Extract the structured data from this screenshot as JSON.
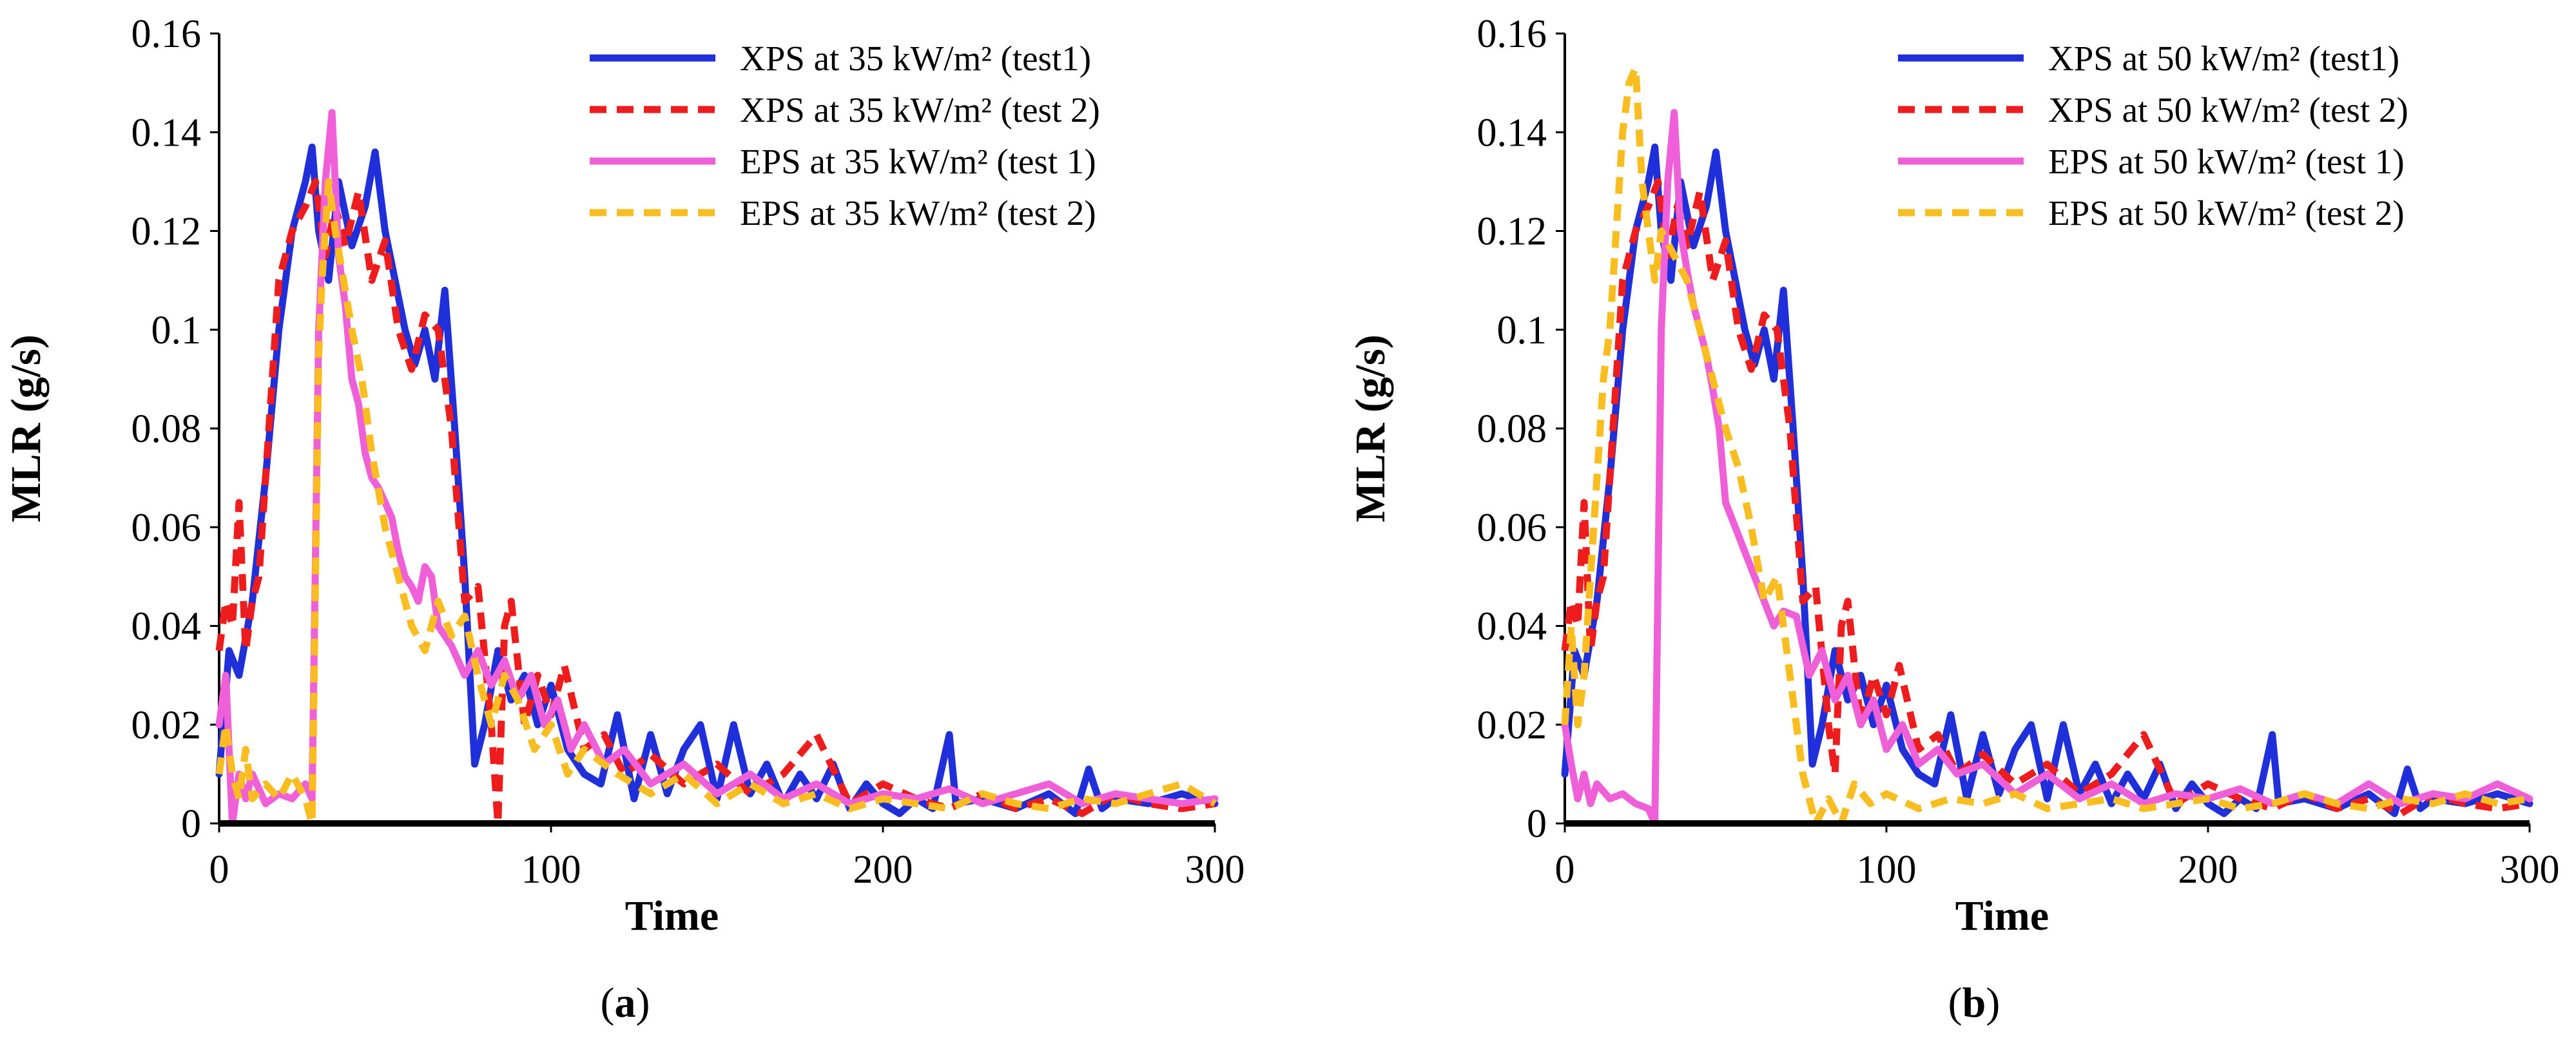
{
  "chart_data": [
    {
      "type": "line",
      "caption_open": "(",
      "caption_letter": "a",
      "caption_close": ")",
      "xlabel": "Time",
      "ylabel": "MLR (g/s)",
      "xlim": [
        0,
        300
      ],
      "ylim": [
        0,
        0.16
      ],
      "x_ticks": [
        "0",
        "100",
        "200",
        "300"
      ],
      "y_ticks": [
        "0",
        "0.02",
        "0.04",
        "0.06",
        "0.08",
        "0.1",
        "0.12",
        "0.14",
        "0.16"
      ],
      "legend_position": "top-right",
      "grid": false,
      "series": [
        {
          "name": "XPS at 35 kW/m² (test1)",
          "color": "#1f2fd9",
          "dash": "solid",
          "x": [
            0,
            3,
            6,
            10,
            14,
            18,
            22,
            26,
            28,
            30,
            33,
            36,
            40,
            44,
            47,
            50,
            53,
            56,
            59,
            62,
            65,
            68,
            71,
            74,
            77,
            80,
            84,
            88,
            92,
            96,
            100,
            105,
            110,
            115,
            120,
            125,
            130,
            135,
            140,
            145,
            150,
            155,
            160,
            165,
            170,
            175,
            180,
            185,
            190,
            195,
            200,
            205,
            210,
            215,
            218,
            220,
            222,
            230,
            240,
            250,
            258,
            262,
            266,
            270,
            280,
            290,
            300
          ],
          "y": [
            0.01,
            0.035,
            0.03,
            0.045,
            0.07,
            0.1,
            0.12,
            0.13,
            0.137,
            0.12,
            0.11,
            0.13,
            0.117,
            0.125,
            0.136,
            0.12,
            0.11,
            0.1,
            0.093,
            0.1,
            0.09,
            0.108,
            0.08,
            0.05,
            0.012,
            0.02,
            0.035,
            0.025,
            0.03,
            0.02,
            0.028,
            0.015,
            0.01,
            0.008,
            0.022,
            0.005,
            0.018,
            0.006,
            0.015,
            0.02,
            0.005,
            0.02,
            0.006,
            0.012,
            0.004,
            0.01,
            0.005,
            0.012,
            0.003,
            0.008,
            0.004,
            0.002,
            0.005,
            0.003,
            0.012,
            0.018,
            0.004,
            0.005,
            0.003,
            0.006,
            0.002,
            0.011,
            0.003,
            0.005,
            0.004,
            0.006,
            0.004
          ]
        },
        {
          "name": "XPS at 35 kW/m² (test 2)",
          "color": "#ee1c1c",
          "dash": "dashed",
          "x": [
            0,
            2,
            4,
            6,
            8,
            10,
            12,
            14,
            18,
            22,
            26,
            29,
            32,
            35,
            38,
            42,
            46,
            50,
            54,
            58,
            62,
            66,
            70,
            74,
            78,
            82,
            84,
            86,
            88,
            92,
            96,
            100,
            104,
            110,
            116,
            122,
            130,
            140,
            150,
            160,
            170,
            180,
            190,
            200,
            210,
            220,
            230,
            240,
            250,
            260,
            270,
            280,
            290,
            300
          ],
          "y": [
            0.035,
            0.045,
            0.04,
            0.065,
            0.035,
            0.045,
            0.05,
            0.07,
            0.11,
            0.12,
            0.125,
            0.13,
            0.115,
            0.125,
            0.117,
            0.128,
            0.11,
            0.118,
            0.1,
            0.092,
            0.103,
            0.1,
            0.08,
            0.045,
            0.048,
            0.02,
            0.0,
            0.04,
            0.045,
            0.02,
            0.03,
            0.022,
            0.032,
            0.015,
            0.018,
            0.01,
            0.014,
            0.008,
            0.012,
            0.006,
            0.01,
            0.018,
            0.004,
            0.008,
            0.005,
            0.003,
            0.006,
            0.003,
            0.005,
            0.002,
            0.006,
            0.004,
            0.003,
            0.004
          ]
        },
        {
          "name": "EPS at 35 kW/m² (test 1)",
          "color": "#ee5fd8",
          "dash": "solid",
          "x": [
            0,
            2,
            4,
            6,
            8,
            10,
            14,
            18,
            22,
            26,
            28,
            30,
            32,
            34,
            36,
            38,
            40,
            42,
            44,
            46,
            48,
            50,
            52,
            54,
            56,
            58,
            60,
            62,
            64,
            66,
            70,
            74,
            78,
            82,
            86,
            90,
            94,
            98,
            102,
            106,
            110,
            116,
            122,
            130,
            140,
            150,
            160,
            170,
            180,
            190,
            200,
            210,
            220,
            230,
            240,
            250,
            260,
            270,
            280,
            290,
            300
          ],
          "y": [
            0.02,
            0.03,
            0.0,
            0.01,
            0.005,
            0.01,
            0.004,
            0.006,
            0.005,
            0.008,
            0.005,
            0.1,
            0.13,
            0.144,
            0.115,
            0.105,
            0.09,
            0.085,
            0.075,
            0.07,
            0.068,
            0.065,
            0.062,
            0.055,
            0.05,
            0.048,
            0.045,
            0.052,
            0.05,
            0.04,
            0.036,
            0.03,
            0.035,
            0.028,
            0.033,
            0.025,
            0.03,
            0.02,
            0.025,
            0.015,
            0.02,
            0.012,
            0.015,
            0.008,
            0.012,
            0.006,
            0.01,
            0.005,
            0.008,
            0.004,
            0.006,
            0.005,
            0.007,
            0.004,
            0.006,
            0.008,
            0.004,
            0.006,
            0.005,
            0.004,
            0.005
          ]
        },
        {
          "name": "EPS at 35 kW/m² (test 2)",
          "color": "#f9bd1f",
          "dash": "dashed",
          "x": [
            0,
            2,
            4,
            6,
            8,
            10,
            14,
            18,
            22,
            26,
            28,
            30,
            31,
            33,
            35,
            37,
            40,
            43,
            46,
            50,
            54,
            58,
            62,
            66,
            70,
            74,
            78,
            82,
            86,
            90,
            95,
            100,
            105,
            110,
            120,
            130,
            140,
            150,
            160,
            170,
            180,
            190,
            200,
            210,
            220,
            230,
            240,
            250,
            260,
            270,
            280,
            290,
            300
          ],
          "y": [
            0.01,
            0.02,
            0.01,
            0.005,
            0.015,
            0.005,
            0.008,
            0.005,
            0.01,
            0.005,
            0.0,
            0.095,
            0.11,
            0.13,
            0.12,
            0.112,
            0.1,
            0.09,
            0.075,
            0.06,
            0.05,
            0.04,
            0.035,
            0.045,
            0.038,
            0.042,
            0.03,
            0.02,
            0.03,
            0.025,
            0.015,
            0.02,
            0.01,
            0.015,
            0.01,
            0.006,
            0.01,
            0.004,
            0.008,
            0.004,
            0.006,
            0.003,
            0.005,
            0.004,
            0.003,
            0.006,
            0.004,
            0.003,
            0.005,
            0.004,
            0.006,
            0.008,
            0.004
          ]
        }
      ]
    },
    {
      "type": "line",
      "caption_open": "(",
      "caption_letter": "b",
      "caption_close": ")",
      "xlabel": "Time",
      "ylabel": "MLR (g/s)",
      "xlim": [
        0,
        300
      ],
      "ylim": [
        0,
        0.16
      ],
      "x_ticks": [
        "0",
        "100",
        "200",
        "300"
      ],
      "y_ticks": [
        "0",
        "0.02",
        "0.04",
        "0.06",
        "0.08",
        "0.1",
        "0.12",
        "0.14",
        "0.16"
      ],
      "legend_position": "top-right",
      "grid": false,
      "series": [
        {
          "name": "XPS at 50 kW/m² (test1)",
          "color": "#1f2fd9",
          "dash": "solid",
          "x": [
            0,
            3,
            6,
            10,
            14,
            18,
            22,
            26,
            28,
            30,
            33,
            36,
            40,
            44,
            47,
            50,
            53,
            56,
            59,
            62,
            65,
            68,
            71,
            74,
            77,
            80,
            84,
            88,
            92,
            96,
            100,
            105,
            110,
            115,
            120,
            125,
            130,
            135,
            140,
            145,
            150,
            155,
            160,
            165,
            170,
            175,
            180,
            185,
            190,
            195,
            200,
            205,
            210,
            215,
            218,
            220,
            222,
            230,
            240,
            250,
            258,
            262,
            266,
            270,
            280,
            290,
            300
          ],
          "y": [
            0.01,
            0.035,
            0.03,
            0.045,
            0.07,
            0.1,
            0.12,
            0.13,
            0.137,
            0.12,
            0.11,
            0.13,
            0.117,
            0.125,
            0.136,
            0.12,
            0.11,
            0.1,
            0.093,
            0.1,
            0.09,
            0.108,
            0.08,
            0.05,
            0.012,
            0.02,
            0.035,
            0.025,
            0.03,
            0.02,
            0.028,
            0.015,
            0.01,
            0.008,
            0.022,
            0.005,
            0.018,
            0.006,
            0.015,
            0.02,
            0.005,
            0.02,
            0.006,
            0.012,
            0.004,
            0.01,
            0.005,
            0.012,
            0.003,
            0.008,
            0.004,
            0.002,
            0.005,
            0.003,
            0.012,
            0.018,
            0.004,
            0.005,
            0.003,
            0.006,
            0.002,
            0.011,
            0.003,
            0.005,
            0.004,
            0.006,
            0.004
          ]
        },
        {
          "name": "XPS at 50 kW/m² (test 2)",
          "color": "#ee1c1c",
          "dash": "dashed",
          "x": [
            0,
            2,
            4,
            6,
            8,
            10,
            12,
            14,
            18,
            22,
            26,
            29,
            32,
            35,
            38,
            42,
            46,
            50,
            54,
            58,
            62,
            66,
            70,
            74,
            78,
            82,
            84,
            86,
            88,
            92,
            96,
            100,
            104,
            110,
            116,
            122,
            130,
            140,
            150,
            160,
            170,
            180,
            190,
            200,
            210,
            220,
            230,
            240,
            250,
            260,
            270,
            280,
            290,
            300
          ],
          "y": [
            0.035,
            0.045,
            0.04,
            0.065,
            0.035,
            0.045,
            0.05,
            0.07,
            0.11,
            0.12,
            0.125,
            0.13,
            0.115,
            0.125,
            0.117,
            0.128,
            0.11,
            0.118,
            0.1,
            0.092,
            0.103,
            0.1,
            0.08,
            0.045,
            0.048,
            0.02,
            0.01,
            0.04,
            0.045,
            0.02,
            0.03,
            0.022,
            0.032,
            0.015,
            0.018,
            0.01,
            0.014,
            0.008,
            0.012,
            0.006,
            0.01,
            0.018,
            0.004,
            0.008,
            0.005,
            0.003,
            0.006,
            0.003,
            0.005,
            0.002,
            0.006,
            0.004,
            0.003,
            0.004
          ]
        },
        {
          "name": "EPS at 50 kW/m² (test 1)",
          "color": "#ee5fd8",
          "dash": "solid",
          "x": [
            0,
            2,
            4,
            6,
            8,
            10,
            14,
            18,
            22,
            26,
            28,
            30,
            32,
            34,
            36,
            38,
            40,
            42,
            44,
            46,
            48,
            50,
            53,
            56,
            59,
            62,
            65,
            68,
            72,
            76,
            80,
            84,
            88,
            92,
            96,
            100,
            105,
            110,
            116,
            122,
            130,
            140,
            150,
            160,
            170,
            180,
            190,
            200,
            210,
            220,
            230,
            240,
            250,
            260,
            270,
            280,
            290,
            300
          ],
          "y": [
            0.02,
            0.012,
            0.005,
            0.01,
            0.004,
            0.008,
            0.005,
            0.006,
            0.004,
            0.003,
            0.0,
            0.1,
            0.13,
            0.144,
            0.12,
            0.112,
            0.105,
            0.1,
            0.095,
            0.088,
            0.08,
            0.065,
            0.06,
            0.055,
            0.05,
            0.045,
            0.04,
            0.043,
            0.042,
            0.03,
            0.035,
            0.025,
            0.03,
            0.02,
            0.025,
            0.015,
            0.02,
            0.012,
            0.015,
            0.01,
            0.012,
            0.006,
            0.01,
            0.005,
            0.008,
            0.004,
            0.006,
            0.005,
            0.007,
            0.004,
            0.006,
            0.004,
            0.008,
            0.004,
            0.006,
            0.005,
            0.008,
            0.005
          ]
        },
        {
          "name": "EPS at 50 kW/m² (test 2)",
          "color": "#f9bd1f",
          "dash": "dashed",
          "x": [
            0,
            2,
            4,
            6,
            8,
            10,
            12,
            14,
            16,
            18,
            20,
            22,
            24,
            26,
            28,
            30,
            34,
            38,
            42,
            46,
            50,
            54,
            58,
            62,
            66,
            70,
            74,
            78,
            82,
            86,
            90,
            95,
            100,
            110,
            120,
            130,
            140,
            150,
            160,
            170,
            180,
            190,
            200,
            210,
            220,
            230,
            240,
            250,
            260,
            270,
            280,
            290,
            300
          ],
          "y": [
            0.02,
            0.04,
            0.02,
            0.03,
            0.05,
            0.07,
            0.09,
            0.1,
            0.12,
            0.14,
            0.15,
            0.153,
            0.13,
            0.12,
            0.11,
            0.12,
            0.115,
            0.11,
            0.1,
            0.09,
            0.08,
            0.072,
            0.06,
            0.045,
            0.05,
            0.03,
            0.01,
            0.0,
            0.005,
            0.0,
            0.008,
            0.004,
            0.006,
            0.003,
            0.005,
            0.004,
            0.006,
            0.003,
            0.004,
            0.005,
            0.003,
            0.004,
            0.005,
            0.003,
            0.004,
            0.006,
            0.004,
            0.003,
            0.005,
            0.004,
            0.006,
            0.004,
            0.005
          ]
        }
      ]
    }
  ]
}
